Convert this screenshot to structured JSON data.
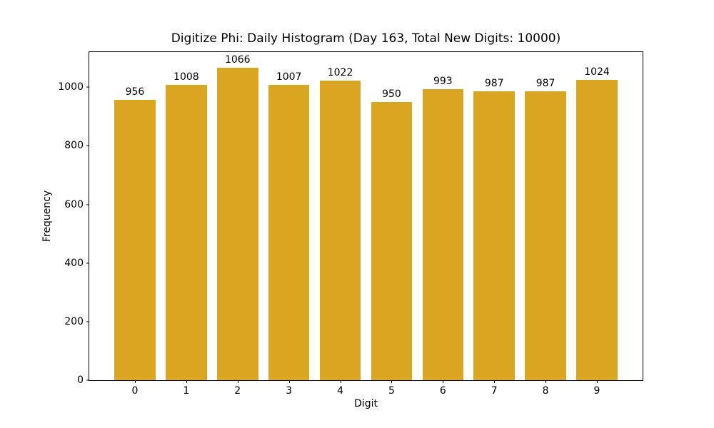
{
  "chart_data": {
    "type": "bar",
    "title": "Digitize Phi: Daily Histogram (Day 163, Total New Digits: 10000)",
    "xlabel": "Digit",
    "ylabel": "Frequency",
    "categories": [
      "0",
      "1",
      "2",
      "3",
      "4",
      "5",
      "6",
      "7",
      "8",
      "9"
    ],
    "values": [
      956,
      1008,
      1066,
      1007,
      1022,
      950,
      993,
      987,
      987,
      1024
    ],
    "bar_labels": [
      "956",
      "1008",
      "1066",
      "1007",
      "1022",
      "950",
      "993",
      "987",
      "987",
      "1024"
    ],
    "bar_color": "#DAA520",
    "background_color": "#FFFFFF",
    "spine_color": "#000000",
    "xlim": [
      -0.89,
      9.89
    ],
    "ylim": [
      0,
      1120
    ],
    "yticks": [
      0,
      200,
      400,
      600,
      800,
      1000
    ],
    "bar_width": 0.8,
    "grid": false,
    "legend": null
  }
}
